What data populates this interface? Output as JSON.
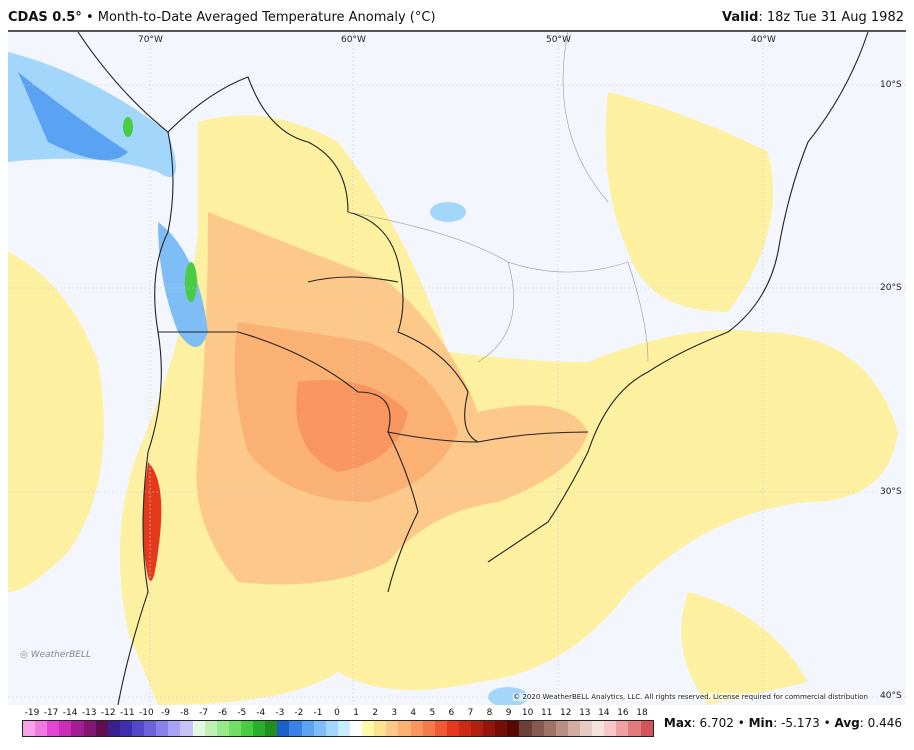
{
  "header": {
    "model": "CDAS 0.5°",
    "separator": "•",
    "product": "Month-to-Date Averaged Temperature Anomaly (°C)",
    "valid_label": "Valid",
    "valid_time": "18z Tue 31 Aug 1982"
  },
  "map": {
    "lon_labels": [
      "70°W",
      "60°W",
      "50°W",
      "40°W"
    ],
    "lat_labels": [
      "10°S",
      "20°S",
      "30°S",
      "40°S"
    ],
    "copyright": "© 2020 WeatherBELL Analytics, LLC. All rights reserved. License required for commercial distribution",
    "logo": "WeatherBELL"
  },
  "colorbar": {
    "ticks": [
      "-19",
      "-17",
      "-14",
      "-13",
      "-12",
      "-11",
      "-10",
      "-9",
      "-8",
      "-7",
      "-6",
      "-5",
      "-4",
      "-3",
      "-2",
      "-1",
      "0",
      "1",
      "2",
      "3",
      "4",
      "5",
      "6",
      "7",
      "8",
      "9",
      "10",
      "11",
      "12",
      "13",
      "14",
      "16",
      "18"
    ],
    "colors": [
      "#f7a3ea",
      "#f07ae0",
      "#e545d5",
      "#c92fb8",
      "#a21f93",
      "#83166f",
      "#620d52",
      "#3a1f8f",
      "#3f2fb0",
      "#5646c8",
      "#6d62da",
      "#8a80ea",
      "#aaa1f5",
      "#c8c2fa",
      "#e4f8e0",
      "#bff0b5",
      "#97ea89",
      "#70df64",
      "#47cc42",
      "#2aaf2a",
      "#1f8f1f",
      "#1b5fc8",
      "#3b82e6",
      "#5aa2f2",
      "#7fbdf7",
      "#a3d6fb",
      "#c6eefd",
      "#ffffff",
      "#fffaa8",
      "#fde38e",
      "#fdc98a",
      "#fbb074",
      "#f9955e",
      "#f57a4a",
      "#ef5a33",
      "#e5391d",
      "#cc2a13",
      "#b01f10",
      "#92160b",
      "#760e08",
      "#5a0806",
      "#6a4038",
      "#86584f",
      "#a07268",
      "#b98e84",
      "#d2aca2",
      "#e6cbc2",
      "#f4e2dc",
      "#f8c6c6",
      "#eea1a3",
      "#e27a7e",
      "#d3545a"
    ]
  },
  "stats": {
    "max_label": "Max",
    "max": "6.702",
    "min_label": "Min",
    "min": "-5.173",
    "avg_label": "Avg",
    "avg": "0.446",
    "sep": "•"
  }
}
